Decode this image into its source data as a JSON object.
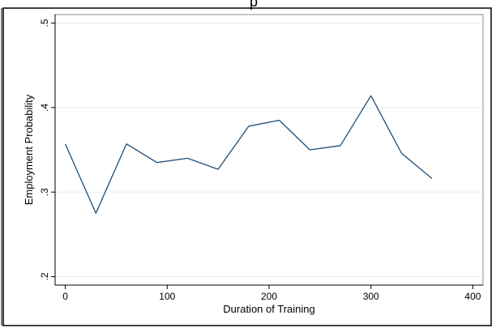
{
  "chart_data": {
    "type": "line",
    "title": "p",
    "xlabel": "Duration of Training",
    "ylabel": "Employment Probability",
    "xlim": [
      -10,
      410
    ],
    "ylim": [
      0.19,
      0.51
    ],
    "x_ticks": [
      0,
      100,
      200,
      300,
      400
    ],
    "x_tick_labels": [
      "0",
      "100",
      "200",
      "300",
      "400"
    ],
    "y_ticks": [
      0.2,
      0.3,
      0.4,
      0.5
    ],
    "y_tick_labels": [
      ".2",
      ".3",
      ".4",
      ".5"
    ],
    "grid": true,
    "legend": "none",
    "line_color": "#1f4e79",
    "grid_color": "#e6eef4",
    "series": [
      {
        "x": [
          0,
          30,
          60,
          90,
          120,
          150,
          180,
          210,
          240,
          270,
          300,
          330,
          360
        ],
        "values": [
          0.357,
          0.275,
          0.357,
          0.335,
          0.34,
          0.327,
          0.378,
          0.385,
          0.35,
          0.355,
          0.414,
          0.346,
          0.316
        ]
      }
    ]
  }
}
